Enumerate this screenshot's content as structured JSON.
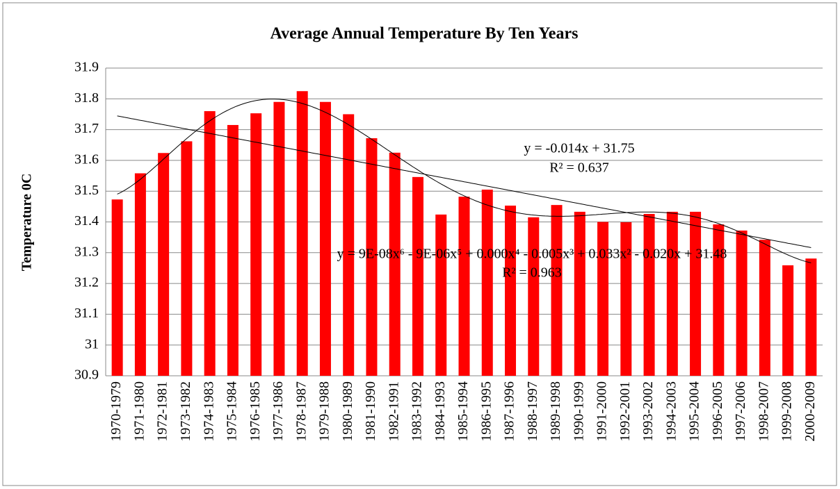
{
  "chart_data": {
    "type": "bar",
    "title": "Average Annual Temperature  By Ten Years",
    "y_label": "Temperature 0C",
    "categories": [
      "1970-1979",
      "1971-1980",
      "1972-1981",
      "1973-1982",
      "1974-1983",
      "1975-1984",
      "1976-1985",
      "1977-1986",
      "1978-1987",
      "1979-1988",
      "1980-1989",
      "1981-1990",
      "1982-1991",
      "1983-1992",
      "1984-1993",
      "1985-1994",
      "1986-1995",
      "1987-1996",
      "1988-1997",
      "1989-1998",
      "1990-1999",
      "1991-2000",
      "1992-2001",
      "1993-2002",
      "1994-2003",
      "1995-2004",
      "1996-2005",
      "1997-2006",
      "1998-2007",
      "1999-2008",
      "2000-2009"
    ],
    "values": [
      31.473,
      31.558,
      31.624,
      31.662,
      31.76,
      31.715,
      31.753,
      31.79,
      31.825,
      31.79,
      31.75,
      31.672,
      31.625,
      31.546,
      31.424,
      31.482,
      31.505,
      31.453,
      31.415,
      31.455,
      31.433,
      31.4,
      31.399,
      31.426,
      31.433,
      31.433,
      31.392,
      31.372,
      31.342,
      31.259,
      31.281
    ],
    "color": "#ff0000",
    "ylim": [
      30.9,
      31.9
    ],
    "yticks": [
      30.9,
      31,
      31.1,
      31.2,
      31.3,
      31.4,
      31.5,
      31.6,
      31.7,
      31.8,
      31.9
    ],
    "grid": true,
    "trendlines": [
      {
        "degree": 1,
        "equation": "y = -0.014x + 31.75",
        "r_squared": "R² = 0.637"
      },
      {
        "degree": 6,
        "equation": "y = 9E-08x⁶ - 9E-06x⁵ + 0.000x⁴ - 0.005x³ + 0.033x² - 0.020x + 31.48",
        "r_squared": "R² = 0.963"
      }
    ]
  }
}
